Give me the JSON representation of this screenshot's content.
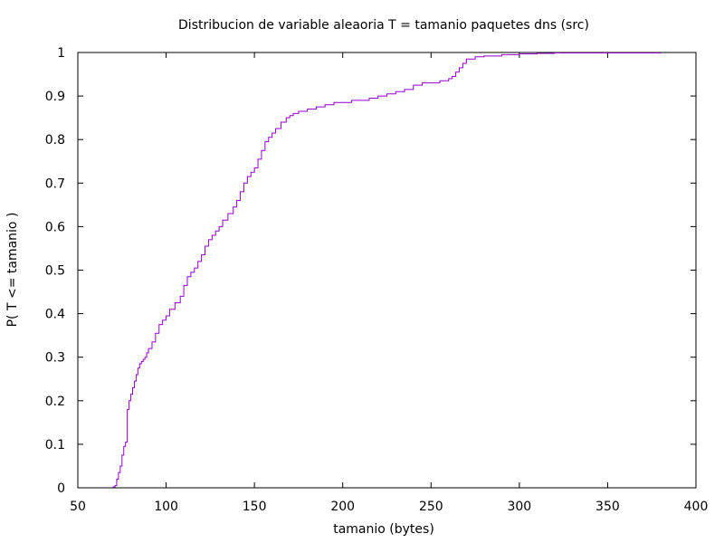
{
  "chart_data": {
    "type": "line",
    "title": "Distribucion de variable aleaoria T = tamanio paquetes dns (src)",
    "xlabel": "tamanio (bytes)",
    "ylabel": "P( T <= tamanio )",
    "xlim": [
      50,
      400
    ],
    "ylim": [
      0,
      1
    ],
    "xticks": [
      50,
      100,
      150,
      200,
      250,
      300,
      350,
      400
    ],
    "yticks": [
      0,
      0.1,
      0.2,
      0.3,
      0.4,
      0.5,
      0.6,
      0.7,
      0.8,
      0.9,
      1
    ],
    "grid": false,
    "line_color": "#9400d3",
    "series": [
      {
        "step": true,
        "x": [
          70,
          71,
          72,
          73,
          74,
          75,
          76,
          77,
          78,
          79,
          80,
          81,
          82,
          83,
          84,
          85,
          86,
          87,
          88,
          89,
          90,
          92,
          94,
          96,
          98,
          100,
          102,
          105,
          108,
          110,
          112,
          114,
          116,
          118,
          120,
          122,
          124,
          126,
          128,
          130,
          132,
          135,
          138,
          140,
          142,
          144,
          146,
          148,
          150,
          152,
          154,
          156,
          158,
          160,
          162,
          165,
          168,
          170,
          172,
          175,
          180,
          185,
          190,
          195,
          200,
          205,
          210,
          215,
          220,
          225,
          230,
          235,
          240,
          245,
          250,
          255,
          260,
          262,
          264,
          266,
          268,
          270,
          275,
          280,
          290,
          300,
          310,
          320,
          380
        ],
        "y": [
          0.002,
          0.005,
          0.02,
          0.035,
          0.05,
          0.075,
          0.095,
          0.105,
          0.18,
          0.2,
          0.215,
          0.23,
          0.245,
          0.26,
          0.275,
          0.285,
          0.29,
          0.295,
          0.3,
          0.31,
          0.32,
          0.335,
          0.355,
          0.375,
          0.385,
          0.395,
          0.41,
          0.425,
          0.44,
          0.465,
          0.485,
          0.495,
          0.505,
          0.52,
          0.535,
          0.555,
          0.57,
          0.58,
          0.59,
          0.6,
          0.615,
          0.63,
          0.645,
          0.66,
          0.68,
          0.7,
          0.715,
          0.725,
          0.735,
          0.755,
          0.775,
          0.795,
          0.805,
          0.815,
          0.825,
          0.84,
          0.85,
          0.855,
          0.86,
          0.865,
          0.87,
          0.875,
          0.88,
          0.885,
          0.885,
          0.89,
          0.89,
          0.895,
          0.9,
          0.905,
          0.91,
          0.915,
          0.925,
          0.93,
          0.93,
          0.935,
          0.94,
          0.945,
          0.955,
          0.965,
          0.975,
          0.985,
          0.99,
          0.992,
          0.995,
          0.997,
          0.998,
          0.999,
          1.0
        ]
      }
    ]
  }
}
